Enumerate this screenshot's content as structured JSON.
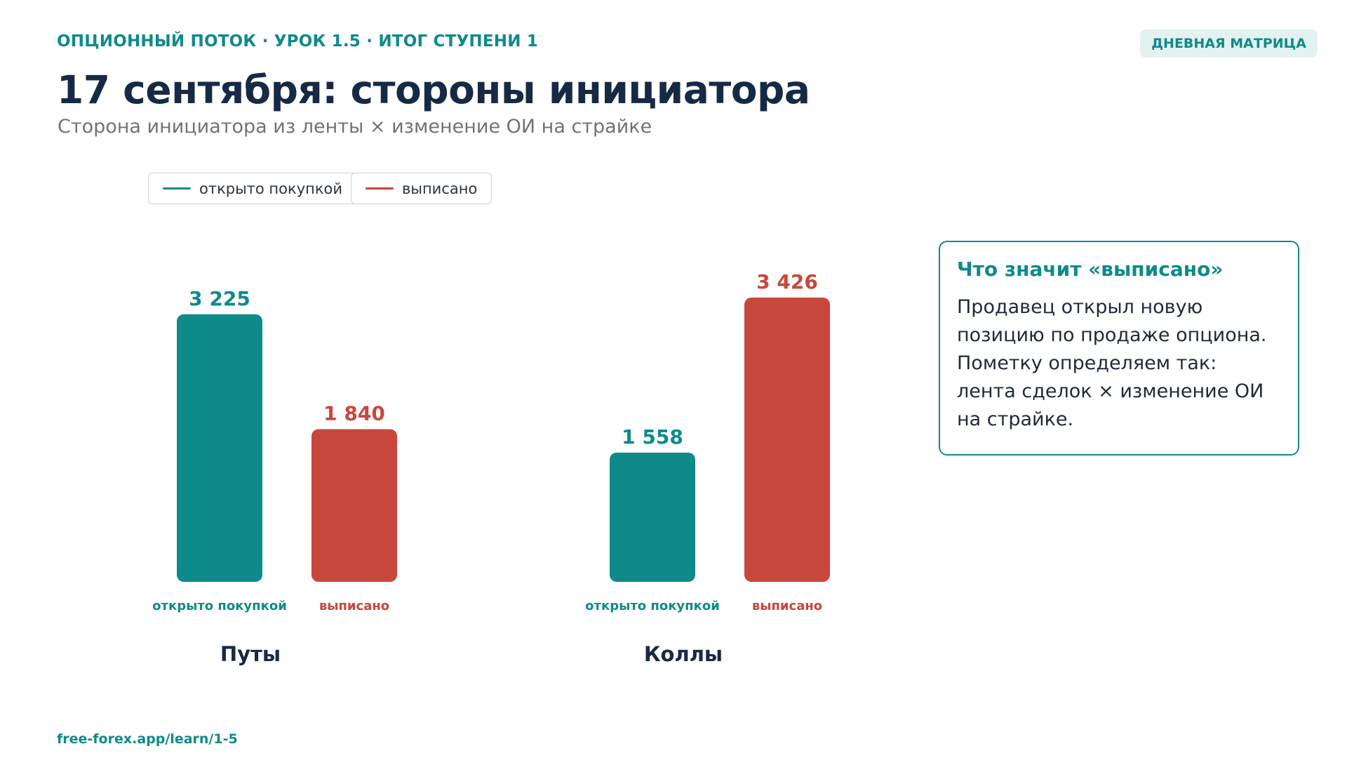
{
  "header": {
    "kicker": "ОПЦИОННЫЙ ПОТОК · УРОК 1.5 · ИТОГ СТУПЕНИ 1",
    "badge": "ДНЕВНАЯ МАТРИЦА",
    "title": "17 сентября: стороны инициатора",
    "subtitle": "Сторона инициатора из ленты × изменение ОИ на страйке"
  },
  "legend": {
    "buy_label": "открыто покупкой",
    "written_label": "выписано"
  },
  "colors": {
    "buy": "#0f8a8b",
    "written": "#c8473c"
  },
  "chart_data": {
    "type": "bar",
    "categories": [
      "Путы",
      "Коллы"
    ],
    "series": [
      {
        "name": "открыто покупкой",
        "values": [
          3225,
          1558
        ],
        "value_labels": [
          "3 225",
          "1 558"
        ]
      },
      {
        "name": "выписано",
        "values": [
          1840,
          3426
        ],
        "value_labels": [
          "1 840",
          "3 426"
        ]
      }
    ],
    "ylim": [
      0,
      3426
    ],
    "grid": false,
    "legend": "top-left"
  },
  "note": {
    "title": "Что значит «выписано»",
    "body": "Продавец открыл новую позицию по продаже опциона. Пометку определяем так: лента сделок × изменение ОИ на страйке."
  },
  "footer": {
    "url": "free-forex.app/learn/1-5"
  }
}
